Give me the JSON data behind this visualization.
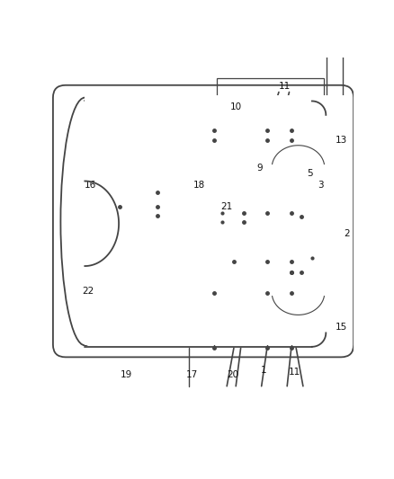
{
  "bg_color": "#ffffff",
  "line_color": "#444444",
  "lw_main": 1.0,
  "lw_thin": 0.7,
  "fig_width": 4.38,
  "fig_height": 5.33,
  "dpi": 100
}
